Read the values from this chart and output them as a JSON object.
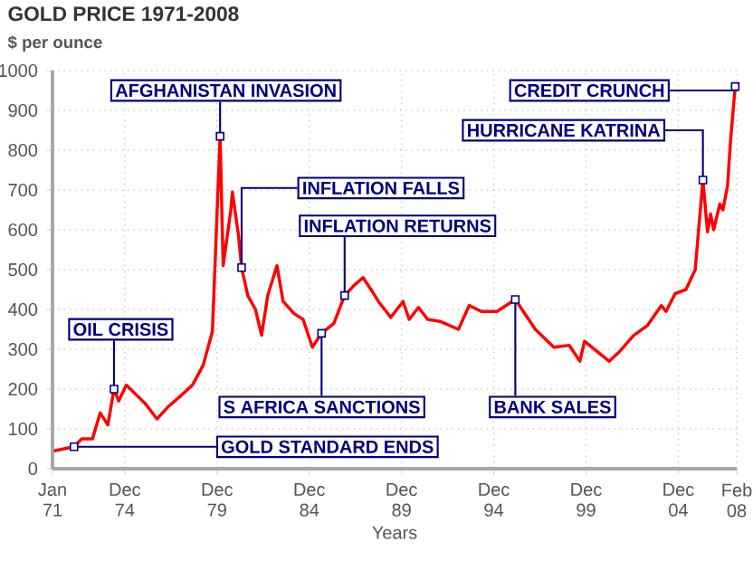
{
  "chart_data": {
    "type": "line",
    "title": "GOLD PRICE 1971-2008",
    "subtitle": "$ per ounce",
    "xlabel": "Years",
    "x": [
      "1971-02",
      "1972-03",
      "1972-08",
      "1973-03",
      "1973-08",
      "1974-01",
      "1974-05",
      "1974-08",
      "1975-01",
      "1976-01",
      "1976-09",
      "1977-04",
      "1978-01",
      "1978-08",
      "1979-03",
      "1979-09",
      "1980-02",
      "1980-04",
      "1980-09",
      "1980-10",
      "1981-02",
      "1981-04",
      "1981-08",
      "1982-01",
      "1982-05",
      "1982-09",
      "1983-03",
      "1983-07",
      "1984-02",
      "1984-08",
      "1985-02",
      "1985-08",
      "1986-04",
      "1986-11",
      "1987-05",
      "1987-11",
      "1988-05",
      "1988-09",
      "1989-05",
      "1990-01",
      "1990-05",
      "1990-11",
      "1991-05",
      "1992-01",
      "1993-01",
      "1993-08",
      "1994-04",
      "1995-02",
      "1996-02",
      "1997-03",
      "1998-03",
      "1999-01",
      "1999-08",
      "1999-11",
      "2000-07",
      "2001-03",
      "2001-10",
      "2002-07",
      "2003-04",
      "2004-01",
      "2004-04",
      "2004-10",
      "2005-05",
      "2005-11",
      "2006-04",
      "2006-07",
      "2006-09",
      "2006-11",
      "2007-03",
      "2007-05",
      "2007-08",
      "2007-10",
      "2008-01"
    ],
    "series": [
      {
        "color": "#ff0000",
        "values": [
          45,
          55,
          75,
          75,
          140,
          110,
          200,
          170,
          210,
          165,
          125,
          155,
          185,
          210,
          260,
          345,
          835,
          510,
          650,
          695,
          585,
          505,
          435,
          400,
          335,
          435,
          510,
          420,
          390,
          375,
          305,
          340,
          365,
          435,
          460,
          480,
          445,
          420,
          380,
          420,
          375,
          405,
          375,
          370,
          350,
          410,
          395,
          395,
          425,
          350,
          305,
          310,
          270,
          320,
          295,
          270,
          295,
          335,
          360,
          410,
          395,
          440,
          450,
          500,
          725,
          595,
          640,
          600,
          665,
          650,
          710,
          825,
          960
        ]
      }
    ],
    "xlim": [
      "1971-01",
      "2008-02"
    ],
    "xticks": [
      {
        "value": "1971-01",
        "label": "Jan 71"
      },
      {
        "value": "1974-12",
        "label": "Dec 74"
      },
      {
        "value": "1979-12",
        "label": "Dec 79"
      },
      {
        "value": "1984-12",
        "label": "Dec 84"
      },
      {
        "value": "1989-12",
        "label": "Dec 89"
      },
      {
        "value": "1994-12",
        "label": "Dec 94"
      },
      {
        "value": "1999-12",
        "label": "Dec 99"
      },
      {
        "value": "2004-12",
        "label": "Dec 04"
      },
      {
        "value": "2008-02",
        "label": "Feb 08"
      }
    ],
    "ylim": [
      0,
      1000
    ],
    "yticks": [
      0,
      100,
      200,
      300,
      400,
      500,
      600,
      700,
      800,
      900,
      1000
    ],
    "grid": true,
    "annotations": [
      {
        "text": "AFGHANISTAN INVASION",
        "x": "1980-02",
        "y": 835
      },
      {
        "text": "CREDIT CRUNCH",
        "x": "2008-01",
        "y": 960
      },
      {
        "text": "HURRICANE KATRINA",
        "x": "2006-04",
        "y": 725
      },
      {
        "text": "INFLATION FALLS",
        "x": "1981-04",
        "y": 505
      },
      {
        "text": "INFLATION RETURNS",
        "x": "1986-11",
        "y": 435
      },
      {
        "text": "OIL CRISIS",
        "x": "1974-05",
        "y": 200
      },
      {
        "text": "S AFRICA SANCTIONS",
        "x": "1985-08",
        "y": 340
      },
      {
        "text": "BANK SALES",
        "x": "1996-02",
        "y": 425
      },
      {
        "text": "GOLD STANDARD ENDS",
        "x": "1972-03",
        "y": 55
      }
    ]
  }
}
